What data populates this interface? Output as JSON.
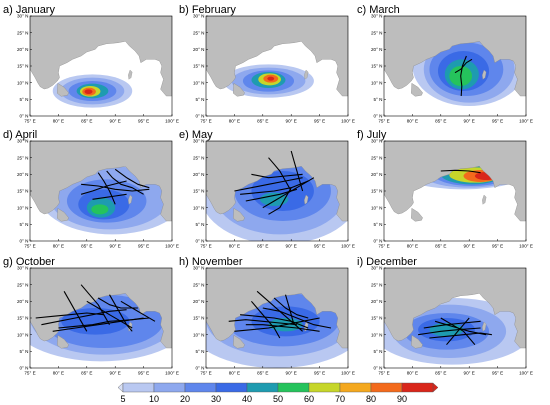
{
  "figure": {
    "axes": {
      "y_ticks": [
        "0° N",
        "5° N",
        "10° N",
        "15° N",
        "20° N",
        "25° N",
        "30° N"
      ],
      "x_ticks": [
        "75° E",
        "80° E",
        "85° E",
        "90° E",
        "95° E",
        "100° E"
      ],
      "lon_range": [
        75,
        100
      ],
      "lat_range": [
        0,
        30
      ]
    },
    "colors": {
      "land": "#bdbdbd",
      "ocean": "#ffffff",
      "track": "#000000"
    },
    "panels": [
      {
        "id": "a",
        "title": "a) January",
        "density": "jan"
      },
      {
        "id": "b",
        "title": "b) February",
        "density": "feb"
      },
      {
        "id": "c",
        "title": "c) March",
        "density": "mar"
      },
      {
        "id": "d",
        "title": "d) April",
        "density": "apr"
      },
      {
        "id": "e",
        "title": "e) May",
        "density": "may"
      },
      {
        "id": "f",
        "title": "f) July",
        "density": "jul"
      },
      {
        "id": "g",
        "title": "g) October",
        "density": "oct"
      },
      {
        "id": "h",
        "title": "h) November",
        "density": "nov"
      },
      {
        "id": "i",
        "title": "i) December",
        "density": "dec"
      }
    ],
    "colorbar": {
      "labels": [
        "5",
        "10",
        "20",
        "30",
        "40",
        "50",
        "60",
        "70",
        "80",
        "90"
      ],
      "colors": [
        "#d9e0f5",
        "#b9c8f1",
        "#8ea8ee",
        "#5f86ec",
        "#3a6ae6",
        "#1e9bb0",
        "#25c35c",
        "#c6d62a",
        "#f4a81f",
        "#f36a1c",
        "#d9261a"
      ]
    }
  }
}
